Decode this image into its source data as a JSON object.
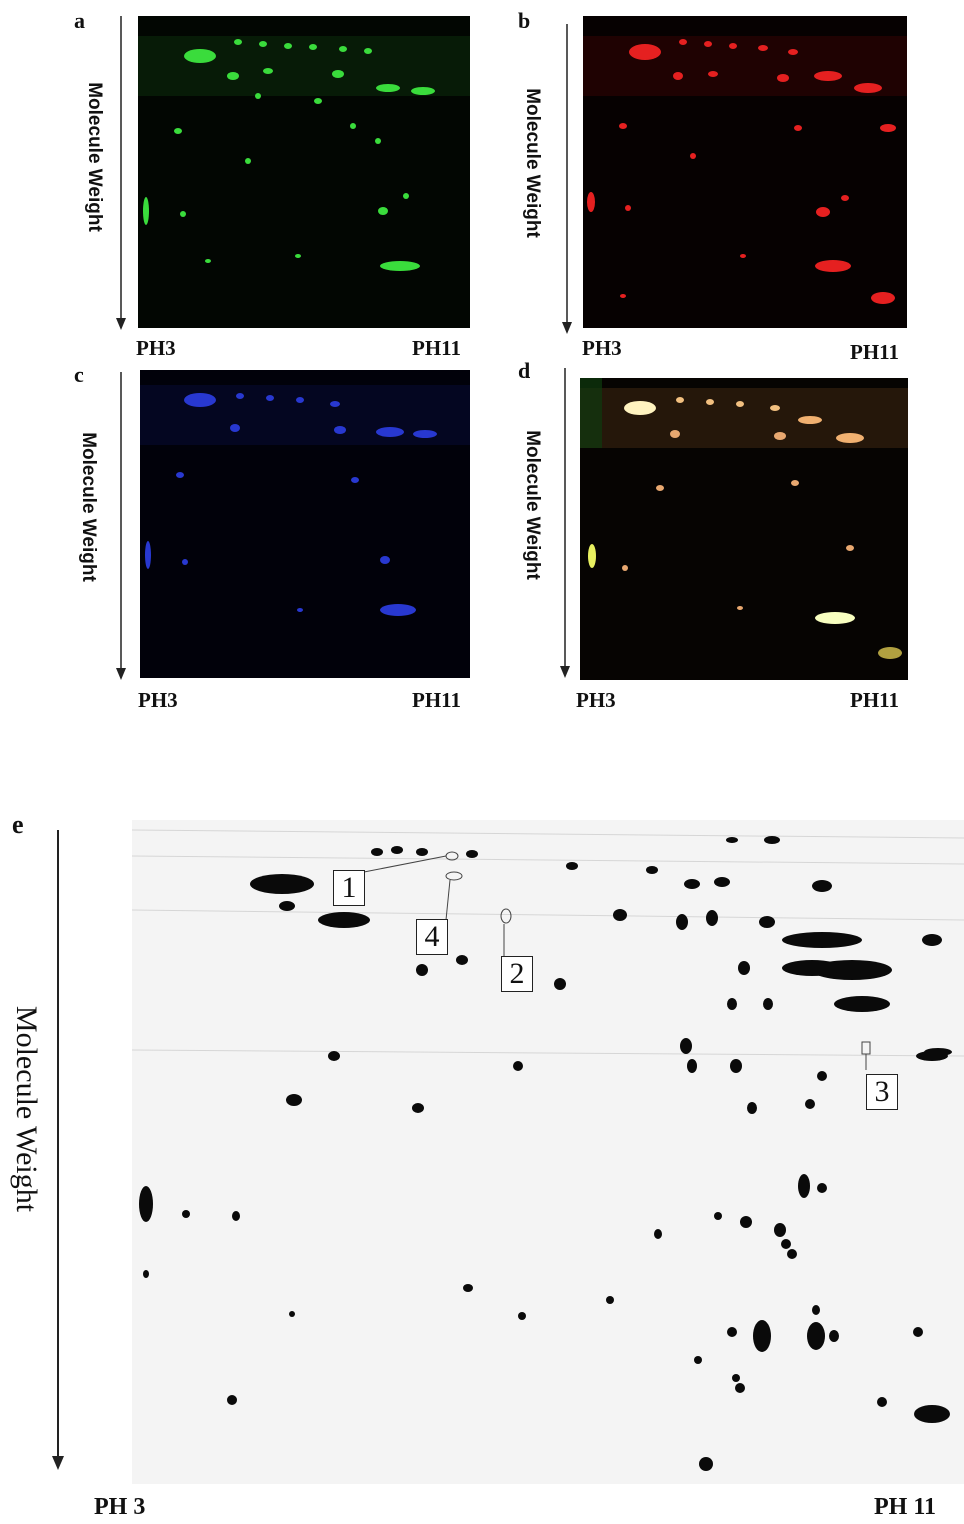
{
  "panels": {
    "a": {
      "letter": "a",
      "ylabel": "Molecule Weight",
      "ph_left": "PH3",
      "ph_right": "PH11",
      "channel_color": "#39d43a"
    },
    "b": {
      "letter": "b",
      "ylabel": "Molecule Weight",
      "ph_left": "PH3",
      "ph_right": "PH11",
      "channel_color": "#e21818"
    },
    "c": {
      "letter": "c",
      "ylabel": "Molecule Weight",
      "ph_left": "PH3",
      "ph_right": "PH11",
      "channel_color": "#2030c8"
    },
    "d": {
      "letter": "d",
      "ylabel": "Molecule Weight",
      "ph_left": "PH3",
      "ph_right": "PH11",
      "channel_color": "#f0c890"
    }
  },
  "panel_e": {
    "letter": "e",
    "ylabel": "Molecule Weight",
    "ph_left": "PH 3",
    "ph_right": "PH 11",
    "spot_labels": [
      "1",
      "4",
      "2",
      "3"
    ]
  }
}
